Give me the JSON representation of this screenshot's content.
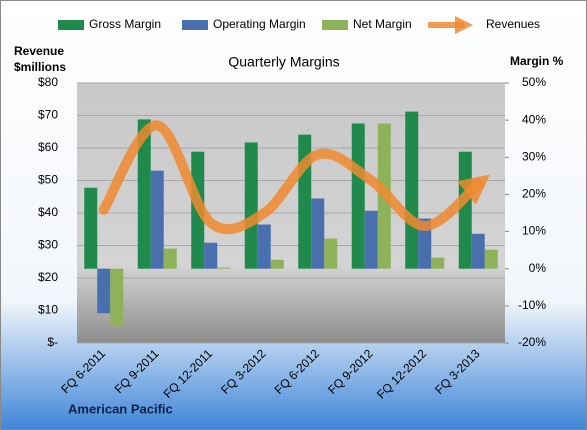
{
  "chart_data": {
    "type": "bar",
    "title": "Quarterly Margins",
    "y_label": [
      "Revenue",
      "$millions"
    ],
    "y2_label": "Margin %",
    "annotation": "American Pacific",
    "categories": [
      "FQ 6-2011",
      "FQ 9-2011",
      "FQ 12-2011",
      "FQ 3-2012",
      "FQ 6-2012",
      "FQ 9-2012",
      "FQ 12-2012",
      "FQ 3-2013"
    ],
    "series": [
      {
        "name": "Gross Margin",
        "color": "#1f8a4c",
        "axis": "y2",
        "values": [
          21.8,
          40.2,
          31.5,
          34,
          36.1,
          39.1,
          42.3,
          31.5
        ]
      },
      {
        "name": "Operating Margin",
        "color": "#4a6fae",
        "axis": "y2",
        "values": [
          -12,
          26.4,
          7,
          11.9,
          18.9,
          15.6,
          13.5,
          9.4
        ]
      },
      {
        "name": "Net Margin",
        "color": "#8db25a",
        "axis": "y2",
        "values": [
          -15.4,
          5.4,
          0.3,
          2.4,
          8.1,
          39.1,
          3,
          5.1
        ]
      },
      {
        "name": "Revenues",
        "color": "#f08a30",
        "type": "line",
        "values": [
          41,
          67,
          37,
          40,
          58,
          50,
          36,
          49
        ]
      }
    ],
    "ylim": [
      0,
      80
    ],
    "yticks": [
      {
        "value": 0,
        "label": "$-"
      },
      {
        "value": 10,
        "label": "$10"
      },
      {
        "value": 20,
        "label": "$20"
      },
      {
        "value": 30,
        "label": "$30"
      },
      {
        "value": 40,
        "label": "$40"
      },
      {
        "value": 50,
        "label": "$50"
      },
      {
        "value": 60,
        "label": "$60"
      },
      {
        "value": 70,
        "label": "$70"
      },
      {
        "value": 80,
        "label": "$80"
      }
    ],
    "y2lim": [
      -20,
      50
    ],
    "y2ticks": [
      {
        "value": -20,
        "label": "-20%"
      },
      {
        "value": -10,
        "label": "-10%"
      },
      {
        "value": 0,
        "label": "0%"
      },
      {
        "value": 10,
        "label": "10%"
      },
      {
        "value": 20,
        "label": "20%"
      },
      {
        "value": 30,
        "label": "30%"
      },
      {
        "value": 40,
        "label": "40%"
      },
      {
        "value": 50,
        "label": "50%"
      }
    ],
    "grid": true
  }
}
